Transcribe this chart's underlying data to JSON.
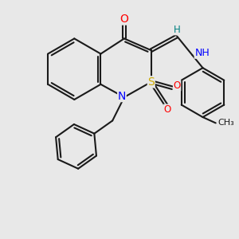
{
  "bg_color": "#e8e8e8",
  "bond_color": "#1a1a1a",
  "bond_width": 1.5,
  "atom_colors": {
    "O": "#ff0000",
    "N": "#0000ff",
    "S": "#ccaa00",
    "H": "#008080",
    "C": "#1a1a1a"
  },
  "font_size": 8.5,
  "figsize": [
    3.0,
    3.0
  ],
  "dpi": 100,
  "xlim": [
    0,
    10
  ],
  "ylim": [
    0,
    10
  ]
}
